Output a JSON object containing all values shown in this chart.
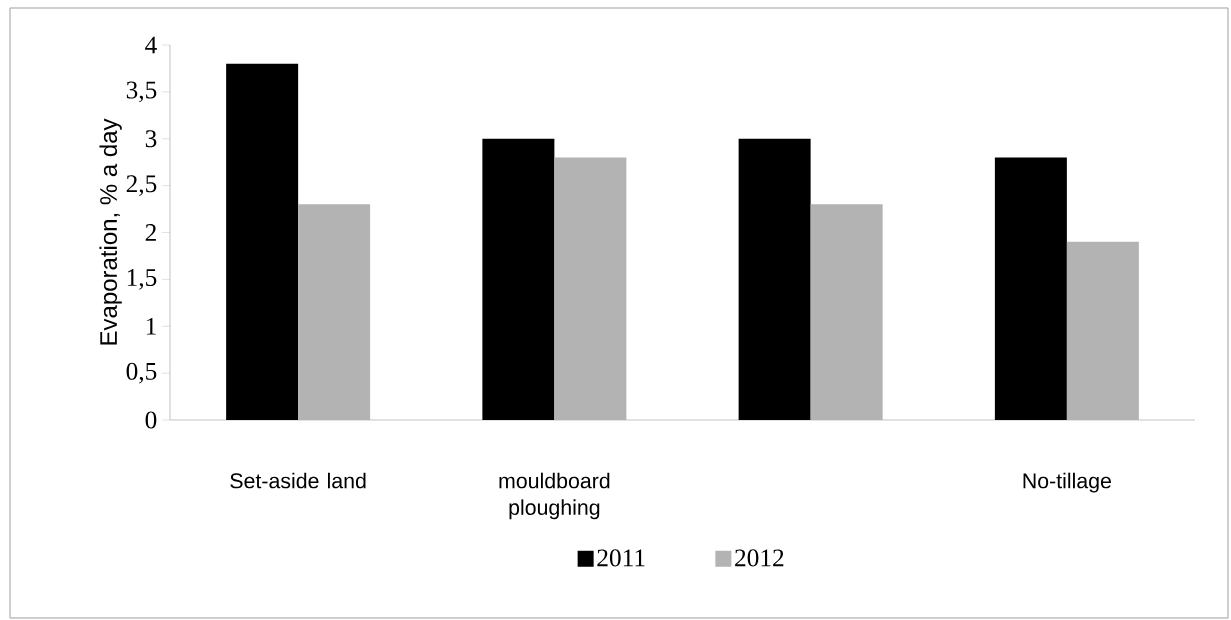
{
  "chart_data": {
    "type": "bar",
    "ylabel": "Evaporation, % a day",
    "categories": [
      "Set-aside land",
      "mouldboard ploughing",
      null,
      "No-tillage"
    ],
    "series": [
      {
        "name": "2011",
        "color": "#000000",
        "values": [
          3.8,
          3.0,
          3.0,
          2.8
        ]
      },
      {
        "name": "2012",
        "color": "#b3b3b3",
        "values": [
          2.3,
          2.8,
          2.3,
          1.9
        ]
      }
    ],
    "ylim": [
      0,
      4
    ],
    "yticks": [
      0,
      {
        "value": 0.5,
        "label": "0,5"
      },
      1,
      {
        "value": 1.5,
        "label": "1,5"
      },
      2,
      {
        "value": 2.5,
        "label": "2,5"
      },
      3,
      {
        "value": 3.5,
        "label": "3,5"
      },
      4
    ],
    "legend": "bottom"
  }
}
